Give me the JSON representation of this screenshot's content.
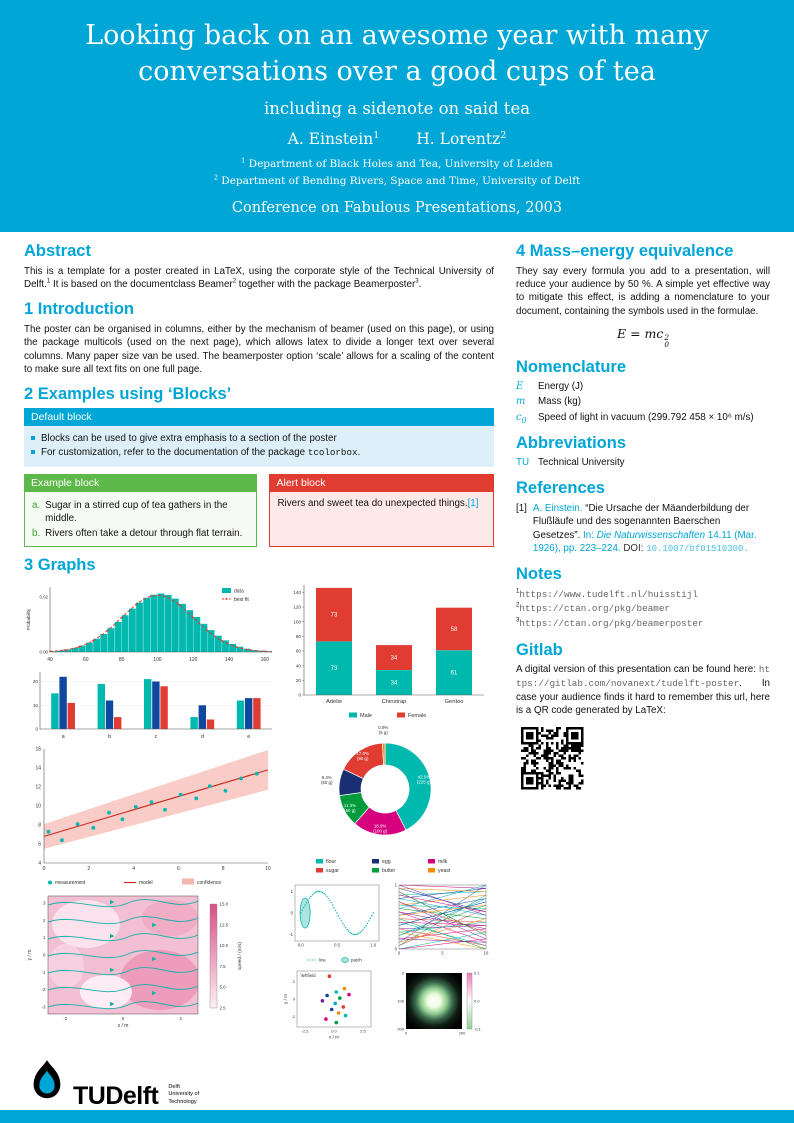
{
  "colors": {
    "accent": "#00A6D6",
    "red": "#E03C31",
    "green": "#5CB849",
    "teal": "#00B9AE"
  },
  "header": {
    "title": "Looking back on an awesome year with many conversations over a good cups of tea",
    "subtitle": "including a sidenote on said tea",
    "authors": [
      {
        "name": "A. Einstein",
        "sup": "1"
      },
      {
        "name": "H. Lorentz",
        "sup": "2"
      }
    ],
    "affiliations": [
      {
        "sup": "1",
        "text": "Department of Black Holes and Tea, University of Leiden"
      },
      {
        "sup": "2",
        "text": "Department of Bending Rivers, Space and Time, University of Delft"
      }
    ],
    "conference": "Conference on Fabulous Presentations, 2003"
  },
  "abstract": {
    "heading": "Abstract",
    "seg1": "This is a template for a poster created in LaTeX, using the corporate style of the Technical University of Delft.",
    "sup1": "1",
    "seg2": " It is based on the documentclass Beamer",
    "sup2": "2",
    "seg3": " together with the package Beamerposter",
    "sup3": "3",
    "seg4": "."
  },
  "introduction": {
    "heading": "1 Introduction",
    "text": "The poster can be organised in columns, either by the mechanism of beamer (used on this page), or using the package multicols (used on the next page), which allows latex to divide a longer text over several columns. Many paper size van be used. The beamerposter option ‘scale’ allows for a scaling of the content to make sure all text fits on one full page."
  },
  "blocks": {
    "heading": "2 Examples using ‘Blocks’",
    "default": {
      "title": "Default block",
      "item1": "Blocks can be used to give extra emphasis to a section of the poster",
      "item2_pre": "For customization, refer to the documentation of the package ",
      "item2_code": "tcolorbox",
      "item2_post": "."
    },
    "example": {
      "title": "Example block",
      "items": [
        {
          "label": "a.",
          "text": "Sugar in a stirred cup of tea gathers in the middle."
        },
        {
          "label": "b.",
          "text": "Rivers often take a detour through flat terrain."
        }
      ]
    },
    "alert": {
      "title": "Alert block",
      "text": "Rivers and sweet tea do unexpected things.",
      "cite": "[1]"
    }
  },
  "graphs": {
    "heading": "3 Graphs"
  },
  "right": {
    "mass": {
      "heading": "4 Mass–energy equivalence",
      "text": "They say every formula you add to a presentation, will reduce your audience by 50 %. A simple yet effective way to mitigate this effect, is adding a nomenclature to your document, containing the symbols used in the formulae.",
      "eq": {
        "body": "E = mc",
        "sup": "2",
        "sub": "0"
      }
    },
    "nomenclature": {
      "heading": "Nomenclature",
      "entries": [
        {
          "symbol": "E",
          "sub": "",
          "desc": "Energy (J)"
        },
        {
          "symbol": "m",
          "sub": "",
          "desc": "Mass (kg)"
        },
        {
          "symbol": "c",
          "sub": "0",
          "desc": "Speed of light in vacuum (299.792 458 × 10⁶ m/s)"
        }
      ]
    },
    "abbreviations": {
      "heading": "Abbreviations",
      "entries": [
        {
          "abbr": "TU",
          "desc": "Technical University"
        }
      ]
    },
    "references": {
      "heading": "References",
      "items": [
        {
          "label": "[1]",
          "authors": "A. Einstein.",
          "title": "“Die Ursache der Mäanderbildung der Flußläufe und des sogenannten Baerschen Gesetzes”.",
          "in": "In:",
          "journal": "Die Naturwissenschaften",
          "detail": "14.11 (Mar. 1926), pp. 223–224.",
          "doi_label": "DOI:",
          "doi": "10.1007/bf01510300."
        }
      ]
    },
    "notes": {
      "heading": "Notes",
      "items": [
        {
          "sup": "1",
          "url": "https://www.tudelft.nl/huisstijl"
        },
        {
          "sup": "2",
          "url": "https://ctan.org/pkg/beamer"
        },
        {
          "sup": "3",
          "url": "https://ctan.org/pkg/beamerposter"
        }
      ]
    },
    "gitlab": {
      "heading": "Gitlab",
      "seg1": "A digital version of this presentation can be found here: ",
      "url": "https://gitlab.com/novanext/tudelft-poster",
      "seg2": ". In case your audience finds it hard to remember this url, here is a QR code generated by LaTeX:"
    }
  },
  "footer": {
    "wordmark_tu": "TU",
    "wordmark_delft": "Delft",
    "tagline1": "Delft",
    "tagline2": "University of",
    "tagline3": "Technology"
  },
  "charts": {
    "histogram": {
      "type": "bar",
      "ylabel": "Probability",
      "x_ticks": [
        40,
        60,
        80,
        100,
        120,
        140,
        160
      ],
      "y_ticks": [
        0,
        0.02
      ],
      "bin_start": 40,
      "bin_width": 4,
      "values": [
        0.0003,
        0.0005,
        0.0009,
        0.0015,
        0.0023,
        0.0034,
        0.0048,
        0.0065,
        0.0086,
        0.0109,
        0.0133,
        0.0157,
        0.0179,
        0.0196,
        0.0207,
        0.0211,
        0.0206,
        0.0193,
        0.0174,
        0.0151,
        0.0127,
        0.0102,
        0.0079,
        0.0059,
        0.0042,
        0.0029,
        0.0019,
        0.0012,
        0.0007,
        0.0005,
        0.0003
      ],
      "fit": {
        "mean": 100,
        "sd": 20,
        "peak": 0.0205
      },
      "legend": [
        "data",
        "best fit"
      ],
      "colors": {
        "data": "#00b9ae",
        "fit": "#e03c31"
      }
    },
    "grouped": {
      "type": "bar",
      "categories": [
        "a",
        "b",
        "c",
        "d",
        "e"
      ],
      "y_ticks": [
        0,
        10,
        20
      ],
      "series": [
        {
          "color": "#00b9ae",
          "values": [
            15,
            19,
            21,
            5,
            12
          ]
        },
        {
          "color": "#1048a0",
          "values": [
            22,
            12,
            20,
            10,
            13
          ]
        },
        {
          "color": "#e03c31",
          "values": [
            11,
            5,
            18,
            4,
            13
          ]
        }
      ]
    },
    "penguins": {
      "type": "stacked_bar",
      "categories": [
        "Adelie",
        "Chinstrap",
        "Gentoo"
      ],
      "y_ticks": [
        0,
        20,
        40,
        60,
        80,
        100,
        120,
        140
      ],
      "series": [
        {
          "name": "Male",
          "color": "#00b9ae",
          "values": [
            73,
            34,
            61
          ]
        },
        {
          "name": "Female",
          "color": "#e03c31",
          "values": [
            73,
            34,
            58
          ]
        }
      ]
    },
    "regression": {
      "type": "scatter",
      "x_ticks": [
        0,
        2,
        4,
        6,
        8,
        10
      ],
      "y_ticks": [
        4,
        6,
        8,
        10,
        12,
        14,
        16
      ],
      "points": [
        [
          0.2,
          7.3
        ],
        [
          0.8,
          6.4
        ],
        [
          1.5,
          8.1
        ],
        [
          2.2,
          7.7
        ],
        [
          2.9,
          9.3
        ],
        [
          3.5,
          8.6
        ],
        [
          4.1,
          9.9
        ],
        [
          4.8,
          10.4
        ],
        [
          5.4,
          9.6
        ],
        [
          6.1,
          11.2
        ],
        [
          6.8,
          10.8
        ],
        [
          7.4,
          12.1
        ],
        [
          8.1,
          11.6
        ],
        [
          8.8,
          12.9
        ],
        [
          9.5,
          13.4
        ]
      ],
      "model": {
        "intercept": 6.8,
        "slope": 0.7
      },
      "band": {
        "start": 1.3,
        "end": 2.1
      },
      "legend": [
        "measurement",
        "model",
        "confidence"
      ],
      "colors": {
        "points": "#00b9ae",
        "model": "#cc2c23",
        "band": "#f6b6b0"
      }
    },
    "donut": {
      "type": "pie",
      "slices": [
        {
          "name": "flour",
          "pct": 42.5,
          "label": "42.5%",
          "sub": "(225 g)",
          "color": "#00b9ae"
        },
        {
          "name": "milk",
          "pct": 18.9,
          "label": "18.9%",
          "sub": "(100 g)",
          "color": "#d6007f"
        },
        {
          "name": "butter",
          "pct": 11.3,
          "label": "11.3%",
          "sub": "(60 g)",
          "color": "#009b3a"
        },
        {
          "name": "egg",
          "pct": 9.4,
          "label": "9.4%",
          "sub": "(50 g)",
          "color": "#1a2f73"
        },
        {
          "name": "sugar",
          "pct": 17.0,
          "label": "17.0%",
          "sub": "(90 g)",
          "color": "#e03c31"
        },
        {
          "name": "yeast",
          "pct": 0.9,
          "label": "0.9%",
          "sub": "(5 g)",
          "color": "#f08c00"
        }
      ],
      "legend_order": [
        "flour",
        "sugar",
        "egg",
        "butter",
        "milk",
        "yeast"
      ]
    },
    "stream": {
      "xlabel": "x / m",
      "ylabel": "y / m",
      "x_ticks": [
        -2,
        0,
        2
      ],
      "y_ticks": [
        -3,
        -2,
        -1,
        0,
        1,
        2,
        3
      ],
      "colorbar": {
        "label": "speed / (m/s)",
        "ticks": [
          15.0,
          12.5,
          10.0,
          7.5,
          5.0,
          2.5
        ]
      }
    },
    "sine": {
      "x_ticks": [
        "0.0",
        "0.5",
        "1.0"
      ],
      "y_ticks": [
        -1,
        0,
        1
      ],
      "legend": [
        "line",
        "patch"
      ],
      "color": "#14b1a7"
    },
    "lines": {
      "x_ticks": [
        0,
        5,
        10
      ],
      "y_ticks": [
        0,
        1
      ],
      "palette": [
        "#00b9ae",
        "#e03c31",
        "#1048a0",
        "#d6007f",
        "#009b3a",
        "#f08c00",
        "#7b1fa2",
        "#00a6d6"
      ]
    },
    "field": {
      "xlabel": "x / m",
      "ylabel": "y / m",
      "x_ticks": [
        "-2.5",
        "0.0",
        "2.5"
      ],
      "y_ticks": [
        -2,
        0,
        2
      ],
      "annotation": "\\leftfield",
      "points": [
        [
          -0.4,
          2.6,
          "#e03c31"
        ],
        [
          0.9,
          1.2,
          "#f08c00"
        ],
        [
          0.2,
          0.8,
          "#00b9ae"
        ],
        [
          -0.6,
          0.4,
          "#1048a0"
        ],
        [
          0.5,
          0.1,
          "#009b3a"
        ],
        [
          1.3,
          0.5,
          "#d6007f"
        ],
        [
          -1.0,
          -0.2,
          "#7b1fa2"
        ],
        [
          0.1,
          -0.5,
          "#00a6d6"
        ],
        [
          0.8,
          -0.9,
          "#e03c31"
        ],
        [
          -0.2,
          -1.2,
          "#1048a0"
        ],
        [
          0.4,
          -1.6,
          "#f08c00"
        ],
        [
          1.0,
          -1.9,
          "#00b9ae"
        ],
        [
          -0.7,
          -2.3,
          "#d6007f"
        ],
        [
          0.2,
          -2.7,
          "#009b3a"
        ]
      ]
    },
    "image": {
      "x_ticks": [
        0,
        200
      ],
      "y_ticks": [
        0,
        100,
        200
      ],
      "colorbar_ticks": [
        "0.1",
        "0.0",
        "-0.1"
      ]
    }
  }
}
